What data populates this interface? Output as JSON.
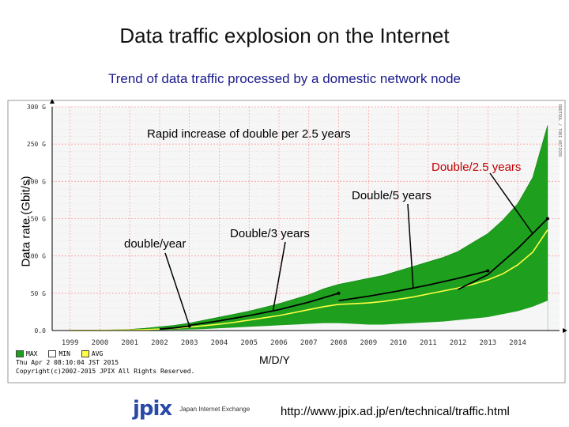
{
  "header": {
    "title": "Data traffic explosion on the Internet",
    "subtitle": "Trend of data traffic processed by a domestic network node"
  },
  "chart_data": {
    "type": "area",
    "ylabel": "Data rate (Gbit/s)",
    "xlabel": "M/D/Y",
    "x_ticks": [
      "1999",
      "2000",
      "2001",
      "2002",
      "2003",
      "2004",
      "2005",
      "2006",
      "2007",
      "2008",
      "2009",
      "2010",
      "2011",
      "2012",
      "2013",
      "2014"
    ],
    "y_ticks": [
      "0.0",
      "50 G",
      "100 G",
      "150 G",
      "200 G",
      "250 G",
      "300 G"
    ],
    "y_tick_values": [
      0,
      50,
      100,
      150,
      200,
      250,
      300
    ],
    "ylim": [
      0,
      300
    ],
    "xlim": [
      1998.4,
      2015.4
    ],
    "grid": true,
    "side_label": "RRDTOOL / TOBI OETIKER",
    "series": [
      {
        "name": "MAX",
        "color": "#1ea01e",
        "x": [
          1999.0,
          2000.0,
          2001.0,
          2001.5,
          2002.0,
          2002.5,
          2003.0,
          2003.5,
          2004.0,
          2004.5,
          2005.0,
          2005.5,
          2006.0,
          2006.5,
          2007.0,
          2007.5,
          2008.0,
          2008.5,
          2009.0,
          2009.5,
          2010.0,
          2010.5,
          2011.0,
          2011.5,
          2012.0,
          2012.5,
          2013.0,
          2013.5,
          2014.0,
          2014.5,
          2015.0
        ],
        "y": [
          0.2,
          0.5,
          1.5,
          3,
          5,
          7,
          10,
          14,
          18,
          22,
          26,
          31,
          36,
          42,
          48,
          56,
          62,
          66,
          70,
          74,
          80,
          86,
          92,
          98,
          106,
          118,
          130,
          148,
          170,
          205,
          275
        ]
      },
      {
        "name": "MIN",
        "color": "#ffffff",
        "x": [
          1999.0,
          2000.0,
          2001.0,
          2001.5,
          2002.0,
          2002.5,
          2003.0,
          2003.5,
          2004.0,
          2004.5,
          2005.0,
          2005.5,
          2006.0,
          2006.5,
          2007.0,
          2007.5,
          2008.0,
          2008.5,
          2009.0,
          2009.5,
          2010.0,
          2010.5,
          2011.0,
          2011.5,
          2012.0,
          2012.5,
          2013.0,
          2013.5,
          2014.0,
          2014.5,
          2015.0
        ],
        "y": [
          0,
          0,
          0.2,
          0.4,
          0.6,
          1,
          1.5,
          2,
          3,
          4,
          5,
          6,
          7,
          8,
          9,
          10,
          10,
          9,
          8,
          8,
          9,
          10,
          11,
          12,
          14,
          16,
          18,
          22,
          26,
          32,
          40
        ]
      },
      {
        "name": "AVG",
        "color": "#ffff44",
        "x": [
          1999.0,
          2000.0,
          2001.0,
          2001.5,
          2002.0,
          2002.5,
          2003.0,
          2003.5,
          2004.0,
          2004.5,
          2005.0,
          2005.5,
          2006.0,
          2006.5,
          2007.0,
          2007.5,
          2008.0,
          2008.5,
          2009.0,
          2009.5,
          2010.0,
          2010.5,
          2011.0,
          2011.5,
          2012.0,
          2012.5,
          2013.0,
          2013.5,
          2014.0,
          2014.5,
          2015.0
        ],
        "y": [
          0.1,
          0.2,
          0.6,
          1.2,
          2,
          3,
          4.5,
          6.5,
          8.5,
          11,
          14,
          17,
          20,
          24,
          28,
          32,
          35,
          36,
          37,
          39,
          42,
          45,
          49,
          53,
          57,
          62,
          68,
          76,
          88,
          105,
          135
        ]
      }
    ],
    "trend_lines": [
      {
        "label": "double/year",
        "x": [
          2002.0,
          2002.5,
          2003.0
        ],
        "y": [
          2,
          3.5,
          6
        ]
      },
      {
        "label": "Double/3 years",
        "x": [
          2003.0,
          2004.0,
          2005.0,
          2006.0,
          2007.0,
          2008.0
        ],
        "y": [
          7,
          13,
          20,
          28,
          38,
          50
        ]
      },
      {
        "label": "Double/5 years",
        "x": [
          2008.0,
          2009.0,
          2010.0,
          2011.0,
          2012.0,
          2013.0
        ],
        "y": [
          40,
          46,
          53,
          61,
          70,
          80
        ]
      },
      {
        "label": "Double/2.5 years",
        "x": [
          2012.0,
          2013.0,
          2014.0,
          2014.5,
          2015.0
        ],
        "y": [
          55,
          75,
          110,
          130,
          150
        ]
      }
    ],
    "annotations": [
      "Rapid increase of double per 2.5 years",
      "Double/2.5 years",
      "Double/5 years",
      "Double/3 years",
      "double/year"
    ],
    "legend": {
      "position": "bottom-left",
      "entries": [
        {
          "label": "MAX",
          "color": "#1ea01e"
        },
        {
          "label": "MIN",
          "color": "#ffffff"
        },
        {
          "label": "AVG",
          "color": "#ffff44"
        }
      ],
      "date_line": "Thu Apr  2 08:10:04 JST 2015",
      "copyright_line": "Copyright(c)2002-2015 JPIX All Rights Reserved."
    }
  },
  "footer": {
    "logo_mark": "jpix",
    "logo_text": "Japan Internet Exchange",
    "url": "http://www.jpix.ad.jp/en/technical/traffic.html"
  }
}
